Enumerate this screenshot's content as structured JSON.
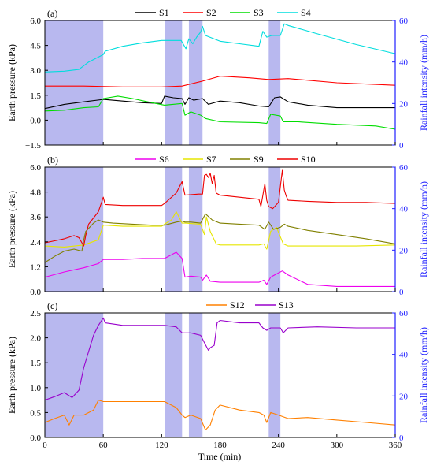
{
  "figure": {
    "xlabel": "Time (min)",
    "x_ticks": [
      0,
      60,
      120,
      180,
      240,
      300,
      360
    ],
    "xlim": [
      0,
      360
    ],
    "rain_color": "#1f1fff",
    "shade_color": "#b8b8ef",
    "rain_intervals": [
      [
        0,
        60
      ],
      [
        123,
        141
      ],
      [
        148,
        162
      ],
      [
        230,
        242
      ]
    ]
  },
  "chart_data": [
    {
      "panel": "(a)",
      "type": "line",
      "ylabel": "Earth pressure (kPa)",
      "ylabel_right": "Rainfall intensity (mm/h)",
      "ylim": [
        -1.5,
        6.0
      ],
      "y_ticks": [
        -1.5,
        0.0,
        1.5,
        3.0,
        4.5,
        6.0
      ],
      "y_tick_labels": [
        "−1.5",
        "0.0",
        "1.5",
        "3.0",
        "4.5",
        "6.0"
      ],
      "ylim_right": [
        0,
        60
      ],
      "y_ticks_right": [
        0,
        20,
        40,
        60
      ],
      "legend_position": "top",
      "series": [
        {
          "name": "S1",
          "color": "#000000",
          "x": [
            0,
            20,
            40,
            60,
            80,
            100,
            120,
            123,
            132,
            141,
            144,
            148,
            153,
            162,
            168,
            180,
            200,
            220,
            230,
            236,
            242,
            250,
            270,
            300,
            330,
            360
          ],
          "y": [
            0.7,
            0.95,
            1.1,
            1.25,
            1.15,
            1.05,
            1.0,
            1.45,
            1.35,
            1.3,
            0.95,
            1.35,
            1.2,
            1.3,
            0.95,
            1.15,
            1.05,
            0.85,
            0.8,
            1.35,
            1.4,
            1.1,
            0.9,
            0.75,
            0.75,
            0.75
          ]
        },
        {
          "name": "S2",
          "color": "#ff0000",
          "x": [
            0,
            40,
            80,
            120,
            141,
            162,
            180,
            210,
            230,
            250,
            300,
            360
          ],
          "y": [
            2.05,
            2.05,
            2.0,
            2.0,
            2.05,
            2.35,
            2.65,
            2.55,
            2.45,
            2.5,
            2.25,
            2.1
          ]
        },
        {
          "name": "S3",
          "color": "#00dd00",
          "x": [
            0,
            20,
            40,
            55,
            60,
            65,
            75,
            90,
            110,
            123,
            141,
            144,
            150,
            160,
            165,
            180,
            220,
            228,
            232,
            242,
            245,
            260,
            300,
            340,
            360
          ],
          "y": [
            0.55,
            0.6,
            0.75,
            0.8,
            1.3,
            1.35,
            1.45,
            1.3,
            1.05,
            0.9,
            1.0,
            0.3,
            0.5,
            0.3,
            0.1,
            -0.1,
            -0.15,
            -0.2,
            0.35,
            0.25,
            -0.1,
            -0.1,
            -0.25,
            -0.35,
            -0.55
          ]
        },
        {
          "name": "S4",
          "color": "#00dddd",
          "x": [
            0,
            20,
            35,
            45,
            60,
            62,
            80,
            100,
            120,
            140,
            145,
            148,
            152,
            156,
            160,
            162,
            165,
            180,
            200,
            220,
            224,
            228,
            233,
            242,
            246,
            250,
            280,
            320,
            360
          ],
          "y": [
            2.9,
            2.95,
            3.05,
            3.5,
            3.95,
            4.15,
            4.45,
            4.65,
            4.8,
            4.8,
            4.3,
            4.9,
            4.6,
            5.0,
            5.3,
            5.65,
            5.1,
            4.75,
            4.6,
            4.45,
            5.35,
            5.0,
            5.1,
            5.1,
            5.8,
            5.7,
            5.2,
            4.55,
            4.0
          ]
        }
      ]
    },
    {
      "panel": "(b)",
      "type": "line",
      "ylabel": "Earth pressure (kPa)",
      "ylabel_right": "Rainfall intensity (mm/h)",
      "ylim": [
        0.0,
        6.0
      ],
      "y_ticks": [
        0.0,
        1.2,
        2.4,
        3.6,
        4.8,
        6.0
      ],
      "y_tick_labels": [
        "0.0",
        "1.2",
        "2.4",
        "3.6",
        "4.8",
        "6.0"
      ],
      "ylim_right": [
        0,
        60
      ],
      "y_ticks_right": [
        0,
        20,
        40,
        60
      ],
      "legend_position": "top",
      "series": [
        {
          "name": "S6",
          "color": "#ee00ee",
          "x": [
            0,
            20,
            40,
            55,
            60,
            80,
            100,
            120,
            123,
            135,
            141,
            144,
            150,
            160,
            162,
            166,
            170,
            180,
            200,
            220,
            225,
            228,
            232,
            236,
            240,
            244,
            250,
            270,
            300,
            330,
            360
          ],
          "y": [
            0.7,
            0.95,
            1.15,
            1.35,
            1.55,
            1.55,
            1.6,
            1.6,
            1.6,
            1.9,
            1.6,
            0.7,
            0.75,
            0.7,
            0.55,
            0.8,
            0.5,
            0.45,
            0.45,
            0.45,
            0.55,
            0.35,
            0.7,
            0.8,
            0.9,
            1.0,
            0.8,
            0.35,
            0.25,
            0.25,
            0.25
          ]
        },
        {
          "name": "S7",
          "color": "#e6e600",
          "x": [
            0,
            20,
            40,
            55,
            60,
            62,
            80,
            100,
            120,
            123,
            130,
            135,
            141,
            144,
            160,
            164,
            166,
            170,
            176,
            180,
            200,
            220,
            225,
            228,
            232,
            238,
            245,
            250,
            280,
            320,
            360
          ],
          "y": [
            2.2,
            2.15,
            2.25,
            2.5,
            3.2,
            3.2,
            3.15,
            3.15,
            3.15,
            3.25,
            3.45,
            3.85,
            3.3,
            3.3,
            3.25,
            2.75,
            3.6,
            2.9,
            2.3,
            2.25,
            2.25,
            2.25,
            2.3,
            2.05,
            2.9,
            3.1,
            2.3,
            2.2,
            2.2,
            2.2,
            2.25
          ]
        },
        {
          "name": "S9",
          "color": "#808000",
          "x": [
            0,
            10,
            20,
            30,
            38,
            40,
            42,
            45,
            50,
            55,
            60,
            70,
            90,
            110,
            123,
            135,
            141,
            144,
            150,
            160,
            165,
            172,
            180,
            200,
            220,
            226,
            230,
            235,
            242,
            246,
            250,
            270,
            300,
            330,
            360
          ],
          "y": [
            1.4,
            1.7,
            1.95,
            2.05,
            1.95,
            2.5,
            2.9,
            3.05,
            3.3,
            3.45,
            3.35,
            3.3,
            3.25,
            3.2,
            3.2,
            3.35,
            3.4,
            3.35,
            3.35,
            3.3,
            3.75,
            3.45,
            3.3,
            3.25,
            3.2,
            3.0,
            3.35,
            3.0,
            3.1,
            3.25,
            3.15,
            2.95,
            2.75,
            2.55,
            2.3
          ]
        },
        {
          "name": "S10",
          "color": "#ee0000",
          "x": [
            0,
            10,
            20,
            30,
            35,
            40,
            42,
            45,
            55,
            60,
            62,
            80,
            100,
            120,
            123,
            135,
            141,
            144,
            158,
            162,
            164,
            166,
            168,
            170,
            172,
            174,
            176,
            180,
            200,
            220,
            222,
            226,
            228,
            230,
            234,
            240,
            244,
            246,
            248,
            250,
            270,
            300,
            330,
            360
          ],
          "y": [
            2.35,
            2.45,
            2.55,
            2.7,
            2.6,
            2.2,
            2.7,
            3.25,
            3.85,
            4.55,
            4.2,
            4.15,
            4.15,
            4.15,
            4.25,
            4.75,
            5.3,
            4.65,
            4.7,
            4.7,
            5.6,
            5.65,
            5.5,
            5.7,
            5.2,
            5.6,
            4.75,
            4.65,
            4.55,
            4.45,
            4.1,
            5.2,
            4.4,
            4.1,
            4.0,
            4.3,
            5.85,
            4.9,
            4.6,
            4.4,
            4.35,
            4.3,
            4.3,
            4.25
          ]
        }
      ]
    },
    {
      "panel": "(c)",
      "type": "line",
      "ylabel": "Earth pressure (kPa)",
      "ylabel_right": "Rainfall intensity (mm/h)",
      "ylim": [
        0.0,
        2.5
      ],
      "y_ticks": [
        0.0,
        0.5,
        1.0,
        1.5,
        2.0,
        2.5
      ],
      "y_tick_labels": [
        "0.0",
        "0.5",
        "1.0",
        "1.5",
        "2.0",
        "2.5"
      ],
      "ylim_right": [
        0,
        60
      ],
      "y_ticks_right": [
        0,
        20,
        40,
        60
      ],
      "legend_position": "top",
      "series": [
        {
          "name": "S12",
          "color": "#ff8000",
          "x": [
            0,
            10,
            20,
            25,
            30,
            40,
            50,
            55,
            60,
            80,
            100,
            120,
            123,
            135,
            141,
            144,
            150,
            160,
            165,
            170,
            175,
            180,
            200,
            220,
            225,
            228,
            232,
            240,
            250,
            270,
            300,
            330,
            360
          ],
          "y": [
            0.3,
            0.38,
            0.45,
            0.25,
            0.45,
            0.45,
            0.55,
            0.75,
            0.72,
            0.72,
            0.72,
            0.72,
            0.72,
            0.6,
            0.45,
            0.4,
            0.45,
            0.38,
            0.15,
            0.25,
            0.55,
            0.65,
            0.55,
            0.5,
            0.45,
            0.3,
            0.5,
            0.45,
            0.38,
            0.4,
            0.35,
            0.3,
            0.25
          ]
        },
        {
          "name": "S13",
          "color": "#9900cc",
          "x": [
            0,
            10,
            20,
            28,
            35,
            40,
            50,
            55,
            60,
            62,
            80,
            100,
            120,
            123,
            135,
            141,
            144,
            150,
            160,
            164,
            168,
            170,
            174,
            177,
            180,
            200,
            220,
            224,
            228,
            232,
            242,
            245,
            250,
            280,
            320,
            360
          ],
          "y": [
            0.75,
            0.82,
            0.9,
            0.8,
            0.95,
            1.4,
            2.05,
            2.25,
            2.4,
            2.3,
            2.25,
            2.25,
            2.25,
            2.25,
            2.22,
            2.1,
            2.1,
            2.1,
            2.05,
            1.9,
            1.75,
            1.8,
            1.85,
            2.3,
            2.35,
            2.3,
            2.3,
            2.2,
            2.15,
            2.2,
            2.2,
            2.1,
            2.2,
            2.22,
            2.2,
            2.2
          ]
        }
      ]
    }
  ]
}
